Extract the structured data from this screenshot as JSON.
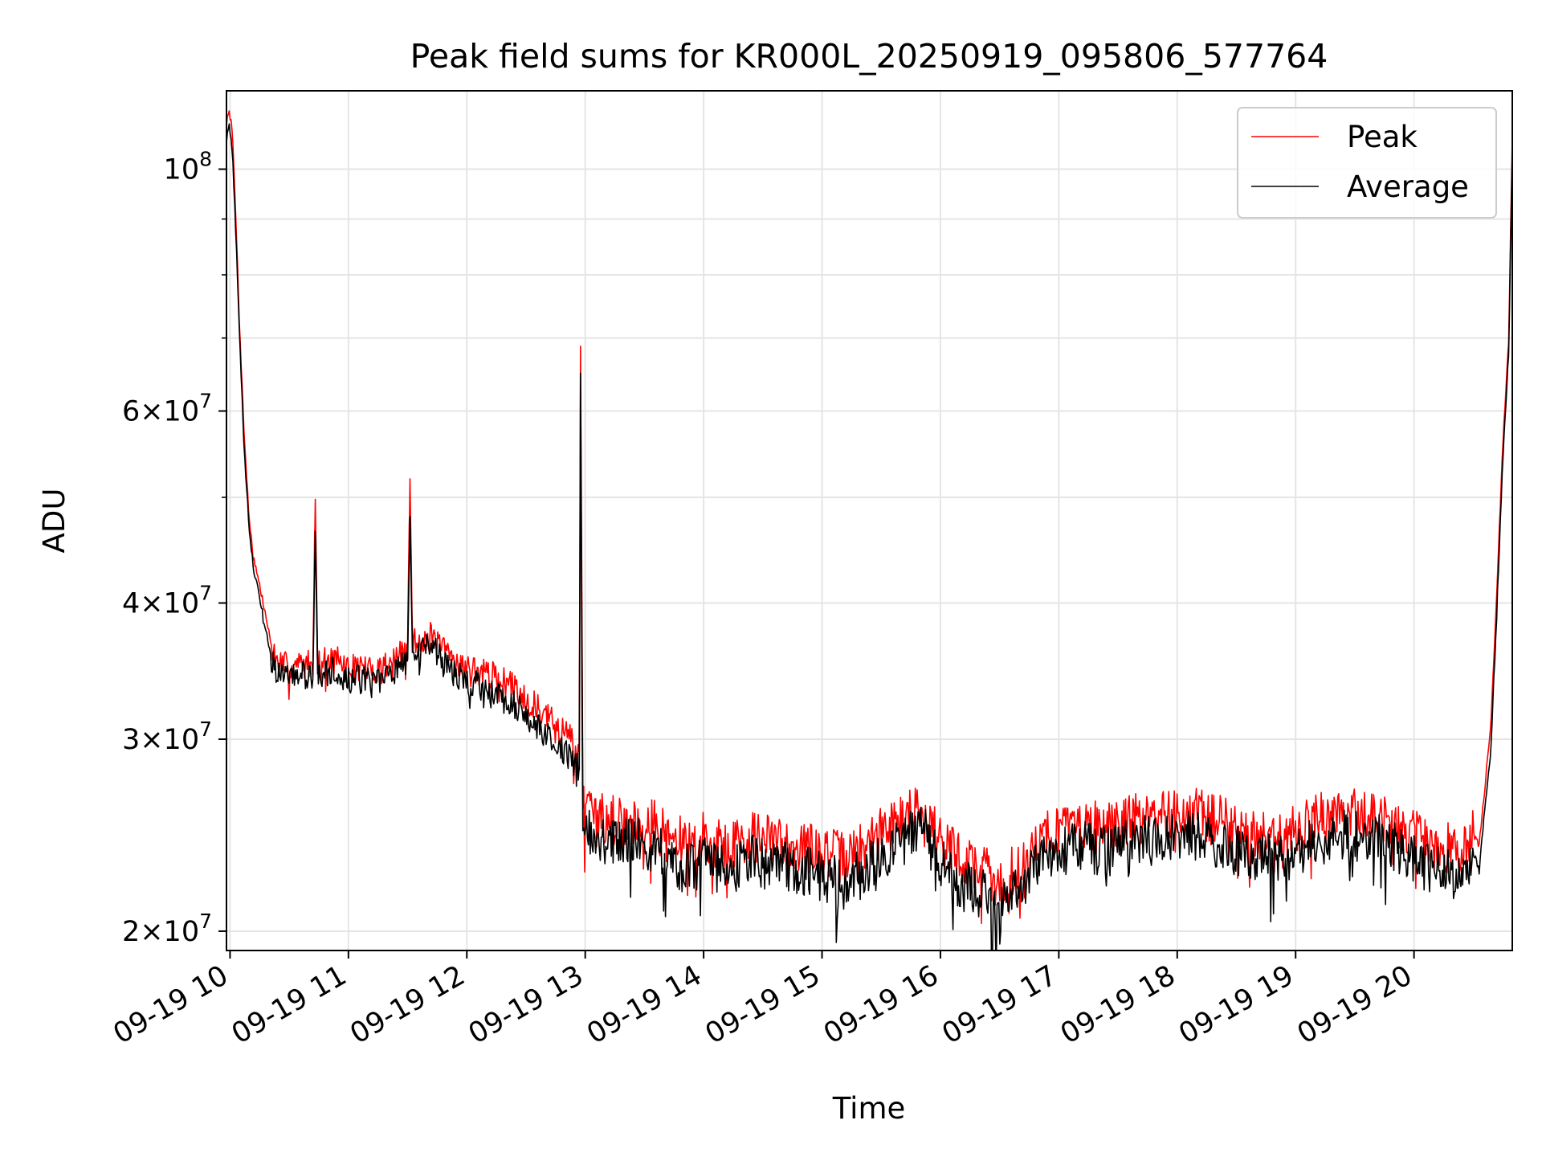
{
  "chart_data": {
    "type": "line",
    "title": "Peak field sums for KR000L_20250919_095806_577764",
    "xlabel": "Time",
    "ylabel": "ADU",
    "x_unit": "hours (2025-09-19)",
    "xlim": [
      9.97,
      20.83
    ],
    "ylim": [
      19200000,
      118000000
    ],
    "yscale": "log",
    "grid": true,
    "legend_position": "top-right",
    "x_ticks": [
      10,
      11,
      12,
      13,
      14,
      15,
      16,
      17,
      18,
      19,
      20
    ],
    "x_tick_labels": [
      "09-19 10",
      "09-19 11",
      "09-19 12",
      "09-19 13",
      "09-19 14",
      "09-19 15",
      "09-19 16",
      "09-19 17",
      "09-19 18",
      "09-19 19",
      "09-19 20"
    ],
    "y_ticks": [
      {
        "value": 100000000,
        "base": "10",
        "exp": "8",
        "coef": ""
      },
      {
        "value": 60000000,
        "base": "10",
        "exp": "7",
        "coef": "6"
      },
      {
        "value": 40000000,
        "base": "10",
        "exp": "7",
        "coef": "4"
      },
      {
        "value": 30000000,
        "base": "10",
        "exp": "7",
        "coef": "3"
      },
      {
        "value": 20000000,
        "base": "10",
        "exp": "7",
        "coef": "2"
      }
    ],
    "y_minor_ticks": [
      90000000,
      80000000,
      70000000,
      50000000
    ],
    "series": [
      {
        "name": "Peak",
        "color": "#ff0000",
        "x": [
          9.97,
          9.99,
          10.02,
          10.05,
          10.08,
          10.12,
          10.16,
          10.2,
          10.25,
          10.3,
          10.35,
          10.4,
          10.5,
          10.6,
          10.7,
          10.72,
          10.74,
          10.8,
          10.9,
          11.0,
          11.1,
          11.2,
          11.3,
          11.4,
          11.5,
          11.52,
          11.54,
          11.6,
          11.7,
          11.8,
          11.9,
          12.0,
          12.1,
          12.2,
          12.3,
          12.4,
          12.5,
          12.6,
          12.7,
          12.8,
          12.9,
          12.95,
          12.96,
          12.98,
          13.0,
          13.1,
          13.2,
          13.3,
          13.4,
          13.5,
          13.6,
          13.7,
          13.8,
          13.9,
          14.0,
          14.2,
          14.4,
          14.6,
          14.8,
          15.0,
          15.2,
          15.4,
          15.6,
          15.8,
          15.85,
          15.9,
          16.0,
          16.2,
          16.4,
          16.45,
          16.5,
          16.6,
          16.7,
          16.8,
          16.9,
          17.0,
          17.2,
          17.4,
          17.6,
          17.8,
          18.0,
          18.2,
          18.4,
          18.6,
          18.8,
          19.0,
          19.2,
          19.4,
          19.6,
          19.8,
          20.0,
          20.2,
          20.4,
          20.5,
          20.55,
          20.6,
          20.65,
          20.7,
          20.75,
          20.8,
          20.83
        ],
        "y": [
          110000000,
          114000000,
          108000000,
          90000000,
          72000000,
          57000000,
          48000000,
          44000000,
          41500000,
          39000000,
          36500000,
          35200000,
          35000000,
          35100000,
          35300000,
          49800000,
          35200000,
          35400000,
          35500000,
          34800000,
          35000000,
          34600000,
          35200000,
          35600000,
          36200000,
          52000000,
          36800000,
          37000000,
          37300000,
          36200000,
          35500000,
          34900000,
          34600000,
          34400000,
          34000000,
          33500000,
          32800000,
          32000000,
          31300000,
          30600000,
          30000000,
          29200000,
          68800000,
          27000000,
          25600000,
          25600000,
          25300000,
          25500000,
          25200000,
          25400000,
          25000000,
          24300000,
          24200000,
          24000000,
          24400000,
          23900000,
          24500000,
          24200000,
          24000000,
          23700000,
          23400000,
          24100000,
          25200000,
          25900000,
          26300000,
          25300000,
          24300000,
          23200000,
          22800000,
          22300000,
          21800000,
          22700000,
          22900000,
          24300000,
          24600000,
          24900000,
          25200000,
          24800000,
          25300000,
          25500000,
          25800000,
          25600000,
          25200000,
          24600000,
          24500000,
          24900000,
          25400000,
          25700000,
          25600000,
          25300000,
          24500000,
          23900000,
          23800000,
          24800000,
          24000000,
          27200000,
          31000000,
          41000000,
          56000000,
          70000000,
          107000000
        ]
      },
      {
        "name": "Average",
        "color": "#000000",
        "x": [
          9.97,
          9.99,
          10.02,
          10.05,
          10.08,
          10.12,
          10.16,
          10.2,
          10.25,
          10.3,
          10.35,
          10.4,
          10.5,
          10.6,
          10.7,
          10.72,
          10.74,
          10.8,
          10.9,
          11.0,
          11.1,
          11.2,
          11.3,
          11.4,
          11.5,
          11.52,
          11.54,
          11.6,
          11.7,
          11.8,
          11.9,
          12.0,
          12.1,
          12.2,
          12.3,
          12.4,
          12.5,
          12.6,
          12.7,
          12.8,
          12.9,
          12.95,
          12.96,
          12.98,
          13.0,
          13.1,
          13.2,
          13.3,
          13.4,
          13.5,
          13.6,
          13.7,
          13.8,
          13.9,
          14.0,
          14.2,
          14.4,
          14.6,
          14.8,
          15.0,
          15.2,
          15.4,
          15.6,
          15.8,
          15.85,
          15.9,
          16.0,
          16.2,
          16.4,
          16.45,
          16.5,
          16.6,
          16.7,
          16.8,
          16.9,
          17.0,
          17.2,
          17.4,
          17.6,
          17.8,
          18.0,
          18.2,
          18.4,
          18.6,
          18.8,
          19.0,
          19.2,
          19.4,
          19.6,
          19.8,
          20.0,
          20.2,
          20.4,
          20.5,
          20.55,
          20.6,
          20.65,
          20.7,
          20.75,
          20.8,
          20.83
        ],
        "y": [
          106000000,
          110000000,
          104000000,
          87000000,
          70000000,
          55500000,
          47000000,
          43000000,
          40500000,
          38000000,
          35500000,
          34300000,
          34200000,
          34300000,
          34500000,
          46500000,
          34400000,
          34600000,
          34700000,
          34000000,
          34100000,
          33800000,
          34300000,
          34800000,
          35500000,
          48000000,
          36000000,
          36200000,
          36500000,
          35300000,
          34500000,
          33900000,
          33600000,
          33300000,
          32900000,
          32300000,
          31600000,
          30800000,
          30100000,
          29400000,
          28800000,
          28100000,
          65000000,
          25900000,
          24500000,
          24500000,
          24200000,
          24400000,
          24100000,
          24200000,
          23800000,
          23200000,
          23000000,
          22800000,
          23200000,
          22700000,
          23300000,
          23000000,
          22800000,
          22500000,
          22200000,
          22900000,
          24000000,
          24700000,
          25100000,
          24100000,
          23100000,
          22000000,
          21600000,
          21200000,
          20700000,
          21500000,
          21800000,
          23200000,
          23500000,
          23700000,
          24000000,
          23600000,
          24100000,
          24300000,
          24600000,
          24400000,
          24000000,
          23400000,
          23300000,
          23700000,
          24200000,
          24500000,
          24400000,
          24100000,
          23300000,
          22700000,
          22600000,
          23600000,
          22800000,
          26000000,
          29500000,
          39500000,
          54000000,
          68000000,
          104000000
        ]
      }
    ]
  }
}
